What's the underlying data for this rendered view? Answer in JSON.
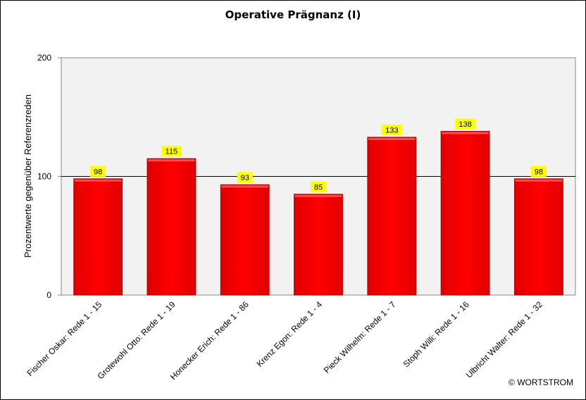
{
  "chart_data": {
    "type": "bar",
    "title": "Operative Prägnanz (I)",
    "ylabel": "Prozentwerte  gegenüber Referenzreden",
    "xlabel": "",
    "categories": [
      "Fischer Oskar: Rede 1 - 15",
      "Grotewohl Otto: Rede 1 - 19",
      "Honecker Erich: Rede 1 - 86",
      "Krenz Egon: Rede 1 - 4",
      "Pieck Wilhelm: Rede 1 - 7",
      "Stoph Willi: Rede 1 - 16",
      "Ulbricht Walter: Rede 1 - 32"
    ],
    "values": [
      98,
      115,
      93,
      85,
      133,
      138,
      98
    ],
    "data_labels": [
      "98",
      "115",
      "93",
      "85",
      "133",
      "138",
      "98"
    ],
    "ylim": [
      0,
      200
    ],
    "yticks": [
      "0",
      "100",
      "200"
    ],
    "reference_line": 100,
    "grid": false,
    "legend": "none",
    "colors": {
      "bar": "#ff0000",
      "bar_edge": "#b00000",
      "plot_background": "#f2f2f2",
      "label_background": "#ffff00"
    }
  },
  "footer": {
    "copyright": "© WORTSTROM"
  }
}
